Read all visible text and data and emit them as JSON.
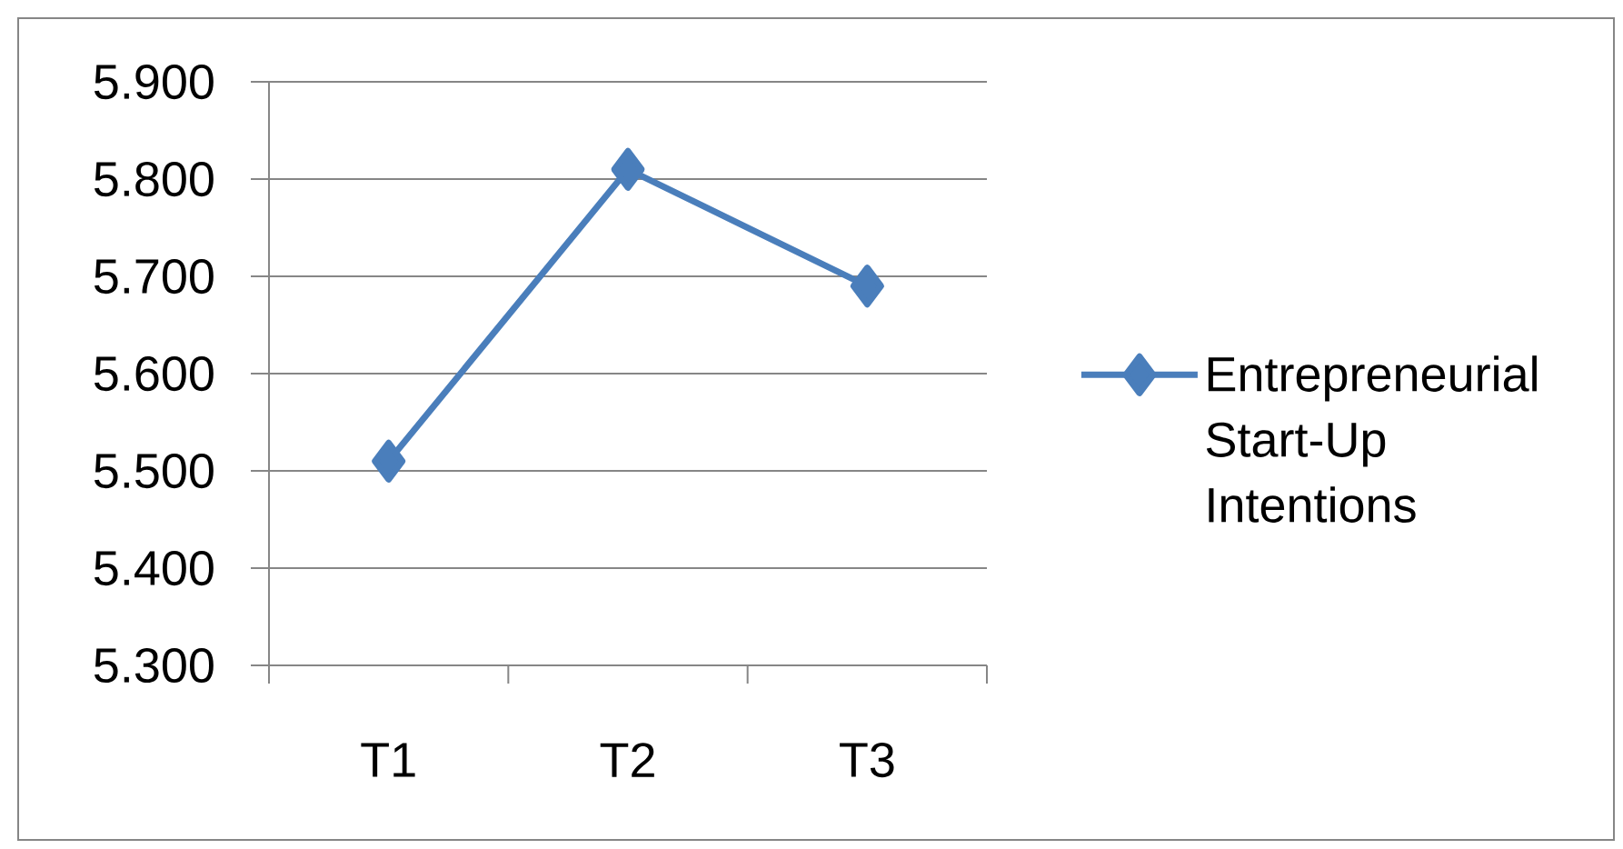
{
  "chart_data": {
    "type": "line",
    "categories": [
      "T1",
      "T2",
      "T3"
    ],
    "series": [
      {
        "name": "Entrepreneurial Start-Up Intentions",
        "color": "#4a7ebb",
        "values": [
          5.51,
          5.81,
          5.69
        ]
      }
    ],
    "ylim": [
      5.3,
      5.9
    ],
    "yticks": [
      {
        "value": 5.3,
        "label": "5.300"
      },
      {
        "value": 5.4,
        "label": "5.400"
      },
      {
        "value": 5.5,
        "label": "5.500"
      },
      {
        "value": 5.6,
        "label": "5.600"
      },
      {
        "value": 5.7,
        "label": "5.700"
      },
      {
        "value": 5.8,
        "label": "5.800"
      },
      {
        "value": 5.9,
        "label": "5.900"
      }
    ],
    "grid": "y",
    "legend": "right",
    "marker": "diamond",
    "line_style": "solid"
  }
}
